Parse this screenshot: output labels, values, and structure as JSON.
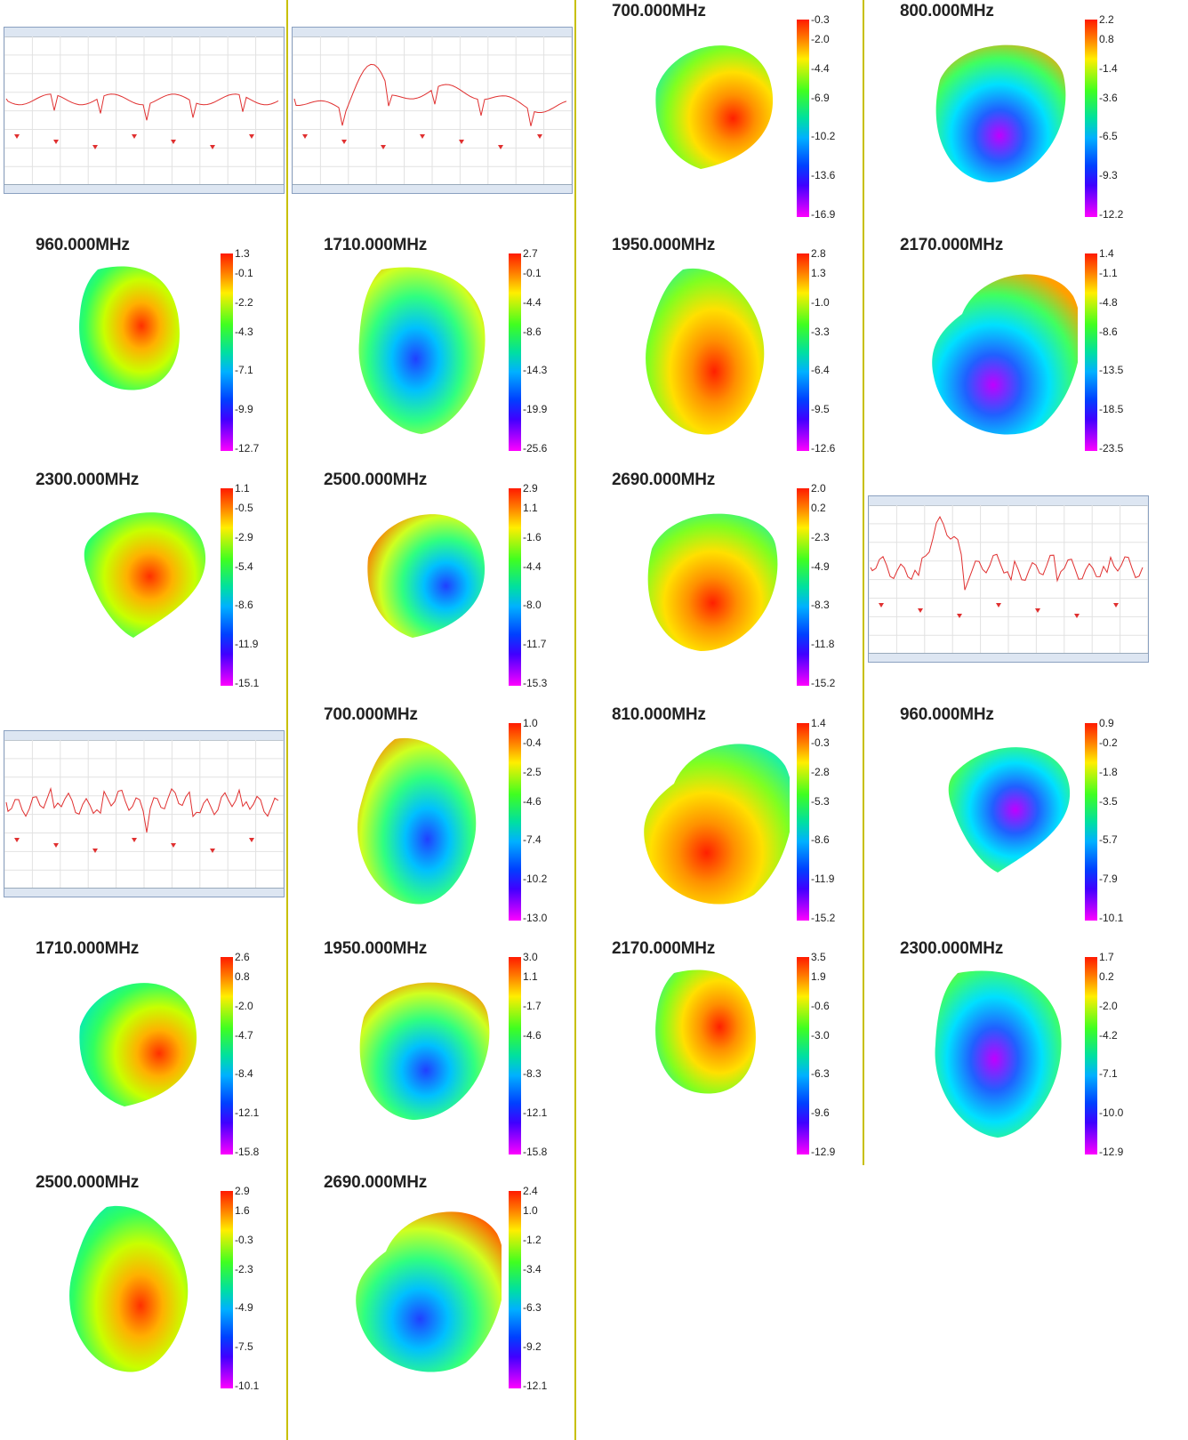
{
  "colors": {
    "divider": "#c8c000",
    "trace": "#e03030"
  },
  "cells": [
    {
      "id": "c0",
      "kind": "vna"
    },
    {
      "id": "c1",
      "kind": "vna"
    },
    {
      "id": "c2",
      "kind": "pattern",
      "title": "700.000MHz",
      "ticks": [
        "-0.3",
        "-2.0",
        "-4.4",
        "-6.9",
        "-10.2",
        "-13.6",
        "-16.9"
      ]
    },
    {
      "id": "c3",
      "kind": "pattern",
      "title": "800.000MHz",
      "ticks": [
        "2.2",
        "0.8",
        "-1.4",
        "-3.6",
        "-6.5",
        "-9.3",
        "-12.2"
      ]
    },
    {
      "id": "c4",
      "kind": "pattern",
      "title": "960.000MHz",
      "ticks": [
        "1.3",
        "-0.1",
        "-2.2",
        "-4.3",
        "-7.1",
        "-9.9",
        "-12.7"
      ]
    },
    {
      "id": "c5",
      "kind": "pattern",
      "title": "1710.000MHz",
      "ticks": [
        "2.7",
        "-0.1",
        "-4.4",
        "-8.6",
        "-14.3",
        "-19.9",
        "-25.6"
      ]
    },
    {
      "id": "c6",
      "kind": "pattern",
      "title": "1950.000MHz",
      "ticks": [
        "2.8",
        "1.3",
        "-1.0",
        "-3.3",
        "-6.4",
        "-9.5",
        "-12.6"
      ]
    },
    {
      "id": "c7",
      "kind": "pattern",
      "title": "2170.000MHz",
      "ticks": [
        "1.4",
        "-1.1",
        "-4.8",
        "-8.6",
        "-13.5",
        "-18.5",
        "-23.5"
      ]
    },
    {
      "id": "c8",
      "kind": "pattern",
      "title": "2300.000MHz",
      "ticks": [
        "1.1",
        "-0.5",
        "-2.9",
        "-5.4",
        "-8.6",
        "-11.9",
        "-15.1"
      ]
    },
    {
      "id": "c9",
      "kind": "pattern",
      "title": "2500.000MHz",
      "ticks": [
        "2.9",
        "1.1",
        "-1.6",
        "-4.4",
        "-8.0",
        "-11.7",
        "-15.3"
      ]
    },
    {
      "id": "c10",
      "kind": "pattern",
      "title": "2690.000MHz",
      "ticks": [
        "2.0",
        "0.2",
        "-2.3",
        "-4.9",
        "-8.3",
        "-11.8",
        "-15.2"
      ]
    },
    {
      "id": "c11",
      "kind": "vna"
    },
    {
      "id": "c12",
      "kind": "vna"
    },
    {
      "id": "c13",
      "kind": "pattern",
      "title": "700.000MHz",
      "ticks": [
        "1.0",
        "-0.4",
        "-2.5",
        "-4.6",
        "-7.4",
        "-10.2",
        "-13.0"
      ]
    },
    {
      "id": "c14",
      "kind": "pattern",
      "title": "810.000MHz",
      "ticks": [
        "1.4",
        "-0.3",
        "-2.8",
        "-5.3",
        "-8.6",
        "-11.9",
        "-15.2"
      ]
    },
    {
      "id": "c15",
      "kind": "pattern",
      "title": "960.000MHz",
      "ticks": [
        "0.9",
        "-0.2",
        "-1.8",
        "-3.5",
        "-5.7",
        "-7.9",
        "-10.1"
      ]
    },
    {
      "id": "c16",
      "kind": "pattern",
      "title": "1710.000MHz",
      "ticks": [
        "2.6",
        "0.8",
        "-2.0",
        "-4.7",
        "-8.4",
        "-12.1",
        "-15.8"
      ]
    },
    {
      "id": "c17",
      "kind": "pattern",
      "title": "1950.000MHz",
      "ticks": [
        "3.0",
        "1.1",
        "-1.7",
        "-4.6",
        "-8.3",
        "-12.1",
        "-15.8"
      ]
    },
    {
      "id": "c18",
      "kind": "pattern",
      "title": "2170.000MHz",
      "ticks": [
        "3.5",
        "1.9",
        "-0.6",
        "-3.0",
        "-6.3",
        "-9.6",
        "-12.9"
      ]
    },
    {
      "id": "c19",
      "kind": "pattern",
      "title": "2300.000MHz",
      "ticks": [
        "1.7",
        "0.2",
        "-2.0",
        "-4.2",
        "-7.1",
        "-10.0",
        "-12.9"
      ]
    },
    {
      "id": "c20",
      "kind": "pattern",
      "title": "2500.000MHz",
      "ticks": [
        "2.9",
        "1.6",
        "-0.3",
        "-2.3",
        "-4.9",
        "-7.5",
        "-10.1"
      ]
    },
    {
      "id": "c21",
      "kind": "pattern",
      "title": "2690.000MHz",
      "ticks": [
        "2.4",
        "1.0",
        "-1.2",
        "-3.4",
        "-6.3",
        "-9.2",
        "-12.1"
      ]
    }
  ]
}
